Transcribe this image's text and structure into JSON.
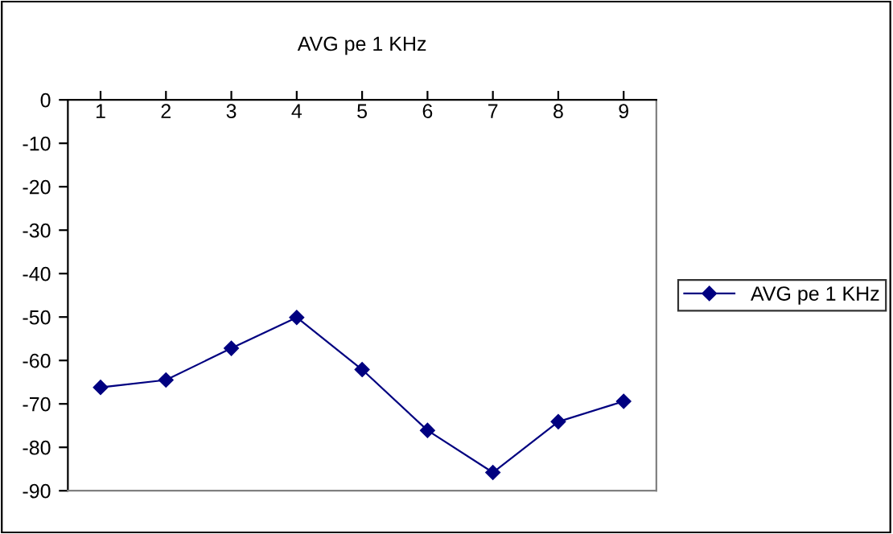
{
  "chart_data": {
    "type": "line",
    "title": "AVG pe 1 KHz",
    "categories": [
      "1",
      "2",
      "3",
      "4",
      "5",
      "6",
      "7",
      "8",
      "9"
    ],
    "series": [
      {
        "name": "AVG pe 1 KHz",
        "color": "#000080",
        "values": [
          -66.2,
          -64.5,
          -57.2,
          -50.1,
          -62.1,
          -76.1,
          -85.8,
          -74.1,
          -69.4
        ]
      }
    ],
    "ylim": [
      -90,
      0
    ],
    "yticks": [
      -90,
      -80,
      -70,
      -60,
      -50,
      -40,
      -30,
      -20,
      -10,
      0
    ],
    "marker": "diamond",
    "line_style": "solid",
    "legend": "right",
    "grid": false
  }
}
